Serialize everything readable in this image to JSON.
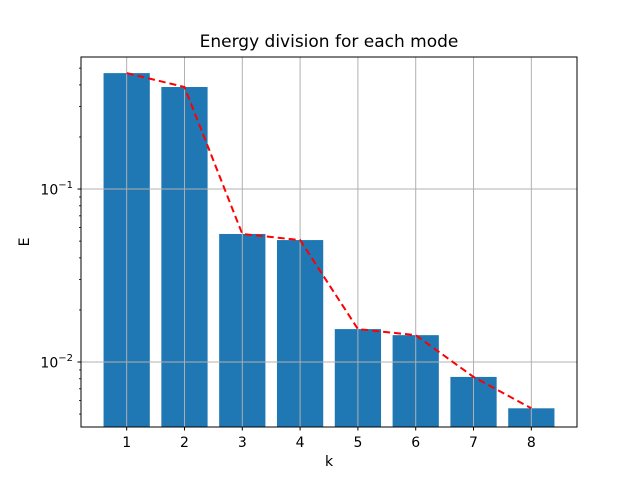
{
  "chart_data": {
    "type": "bar",
    "title": "Energy division for each mode",
    "xlabel": "k",
    "ylabel": "E",
    "yscale": "log",
    "categories": [
      1,
      2,
      3,
      4,
      5,
      6,
      7,
      8
    ],
    "xtick_labels": [
      "1",
      "2",
      "3",
      "4",
      "5",
      "6",
      "7",
      "8"
    ],
    "ytick_exponents": [
      -1,
      -2
    ],
    "ytick_labels": [
      "10⁻¹",
      "10⁻²"
    ],
    "series": [
      {
        "name": "bar-energy",
        "type": "bar",
        "values": [
          0.468,
          0.389,
          0.055,
          0.0507,
          0.0155,
          0.0143,
          0.0082,
          0.0054
        ],
        "color": "#1f77b4"
      },
      {
        "name": "red-dashed-trend",
        "type": "line",
        "values": [
          0.468,
          0.389,
          0.055,
          0.0507,
          0.0155,
          0.0143,
          0.0082,
          0.0054
        ],
        "color": "#ff0000",
        "style": "dashed"
      }
    ],
    "bar_width": 0.8,
    "xlim": [
      0.21,
      8.79
    ],
    "ylim": [
      0.00421,
      0.58
    ],
    "grid": true,
    "grid_color": "#b0b0b0",
    "legend": "none"
  }
}
